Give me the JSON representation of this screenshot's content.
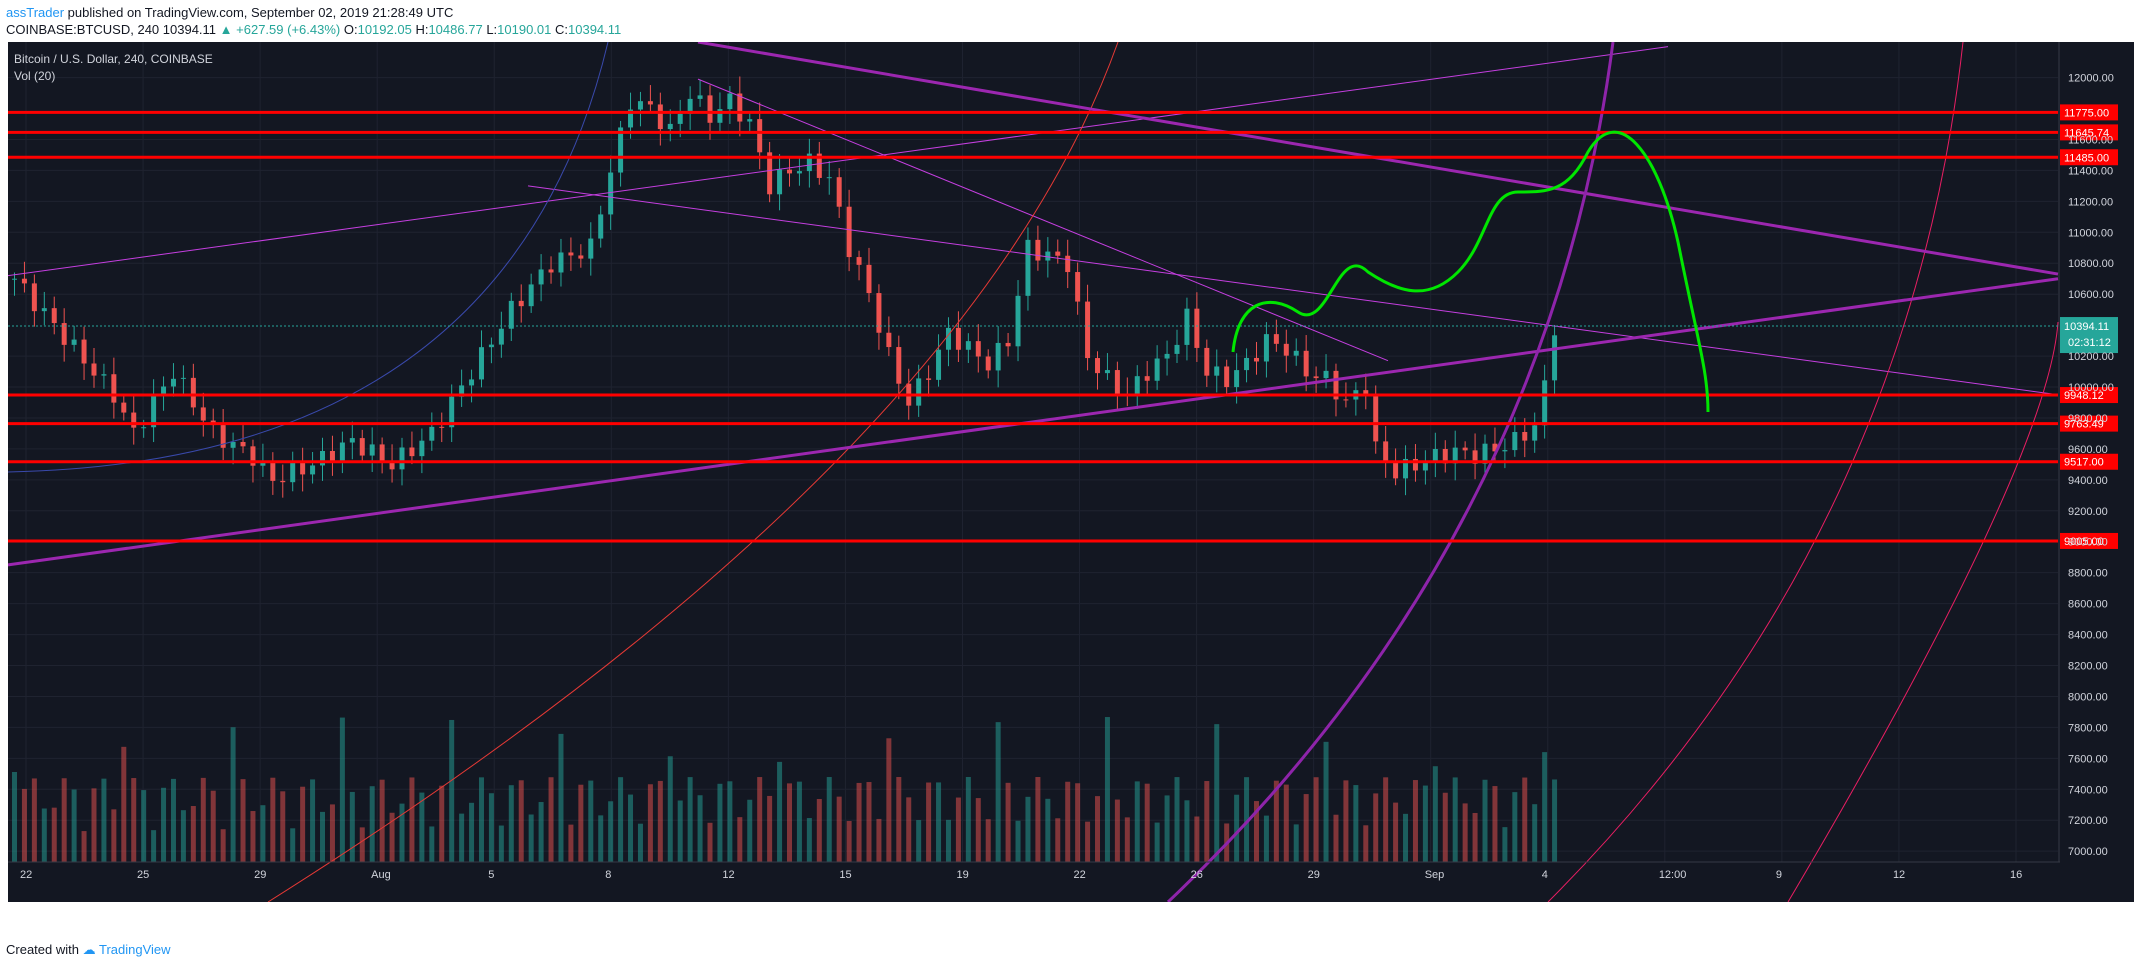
{
  "header": {
    "author": "assTrader",
    "published": "published on TradingView.com, September 02, 2019 21:28:49 UTC",
    "symbol": "COINBASE:BTCUSD, 240",
    "last": "10394.11",
    "change": "▲ +627.59 (+6.43%)",
    "o_label": "O:",
    "o_value": "10192.05",
    "h_label": "H:",
    "h_value": "10486.77",
    "l_label": "L:",
    "l_value": "10190.01",
    "c_label": "C:",
    "c_value": "10394.11"
  },
  "legend": {
    "title": "Bitcoin / U.S. Dollar, 240, COINBASE",
    "vol": "Vol (20)"
  },
  "footer": {
    "created_with": "Created with",
    "brand": "TradingView"
  },
  "colors": {
    "background": "#131722",
    "grid": "#1f2330",
    "up": "#26a69a",
    "down": "#ef5350",
    "hline": "#ff0000",
    "trend": "#9c27b0",
    "thin_trend": "#c53fe0",
    "projection": "#00e600",
    "price_line": "#26a69a"
  },
  "chart_data": {
    "type": "candlestick",
    "y_ticks": [
      12000,
      11600,
      11400,
      11200,
      11000,
      10800,
      10600,
      10200,
      10000,
      9800,
      9600,
      9400,
      9200,
      9000,
      8800,
      8600,
      8400,
      8200,
      8000,
      7800,
      7600,
      7400,
      7200,
      7000
    ],
    "ylim": [
      6930,
      12230
    ],
    "x_ticks": [
      "22",
      "25",
      "29",
      "Aug",
      "5",
      "8",
      "12",
      "15",
      "19",
      "22",
      "26",
      "29",
      "Sep",
      "4",
      "12:00",
      "9",
      "12",
      "16"
    ],
    "horizontal_levels": [
      {
        "value": 11775.0,
        "label": "11775.00"
      },
      {
        "value": 11645.74,
        "label": "11645.74"
      },
      {
        "value": 11485.0,
        "label": "11485.00"
      },
      {
        "value": 9948.12,
        "label": "9948.12"
      },
      {
        "value": 9763.49,
        "label": "9763.49"
      },
      {
        "value": 9517.0,
        "label": "9517.00"
      },
      {
        "value": 9005.0,
        "label": "9005.00"
      }
    ],
    "current_price": {
      "value": 10394.11,
      "label": "10394.11",
      "countdown": "02:31:12"
    },
    "candles_close_path": [
      [
        0,
        10700
      ],
      [
        4,
        10400
      ],
      [
        8,
        10100
      ],
      [
        10,
        9950
      ],
      [
        12,
        9700
      ],
      [
        14,
        9900
      ],
      [
        16,
        10100
      ],
      [
        20,
        9700
      ],
      [
        24,
        9550
      ],
      [
        26,
        9400
      ],
      [
        30,
        9500
      ],
      [
        34,
        9650
      ],
      [
        38,
        9500
      ],
      [
        42,
        9700
      ],
      [
        46,
        10100
      ],
      [
        50,
        10500
      ],
      [
        54,
        10800
      ],
      [
        58,
        10900
      ],
      [
        60,
        11400
      ],
      [
        62,
        11850
      ],
      [
        64,
        11800
      ],
      [
        66,
        11650
      ],
      [
        68,
        11900
      ],
      [
        70,
        11750
      ],
      [
        72,
        11850
      ],
      [
        74,
        11700
      ],
      [
        76,
        11300
      ],
      [
        78,
        11400
      ],
      [
        80,
        11450
      ],
      [
        82,
        11350
      ],
      [
        84,
        10900
      ],
      [
        86,
        10600
      ],
      [
        88,
        10200
      ],
      [
        90,
        9900
      ],
      [
        92,
        10100
      ],
      [
        94,
        10350
      ],
      [
        96,
        10250
      ],
      [
        98,
        10150
      ],
      [
        100,
        10300
      ],
      [
        102,
        10900
      ],
      [
        104,
        10850
      ],
      [
        106,
        10800
      ],
      [
        108,
        10200
      ],
      [
        110,
        10050
      ],
      [
        112,
        9950
      ],
      [
        114,
        10100
      ],
      [
        116,
        10200
      ],
      [
        118,
        10450
      ],
      [
        120,
        10100
      ],
      [
        122,
        10050
      ],
      [
        124,
        10150
      ],
      [
        126,
        10300
      ],
      [
        128,
        10250
      ],
      [
        130,
        10100
      ],
      [
        132,
        10050
      ],
      [
        134,
        9900
      ],
      [
        136,
        10000
      ],
      [
        137,
        9600
      ],
      [
        139,
        9450
      ],
      [
        141,
        9500
      ],
      [
        143,
        9550
      ],
      [
        145,
        9580
      ],
      [
        147,
        9560
      ],
      [
        149,
        9600
      ],
      [
        151,
        9650
      ],
      [
        153,
        9750
      ],
      [
        154,
        10000
      ],
      [
        155,
        10394
      ]
    ],
    "volume_scale_note": "relative"
  }
}
